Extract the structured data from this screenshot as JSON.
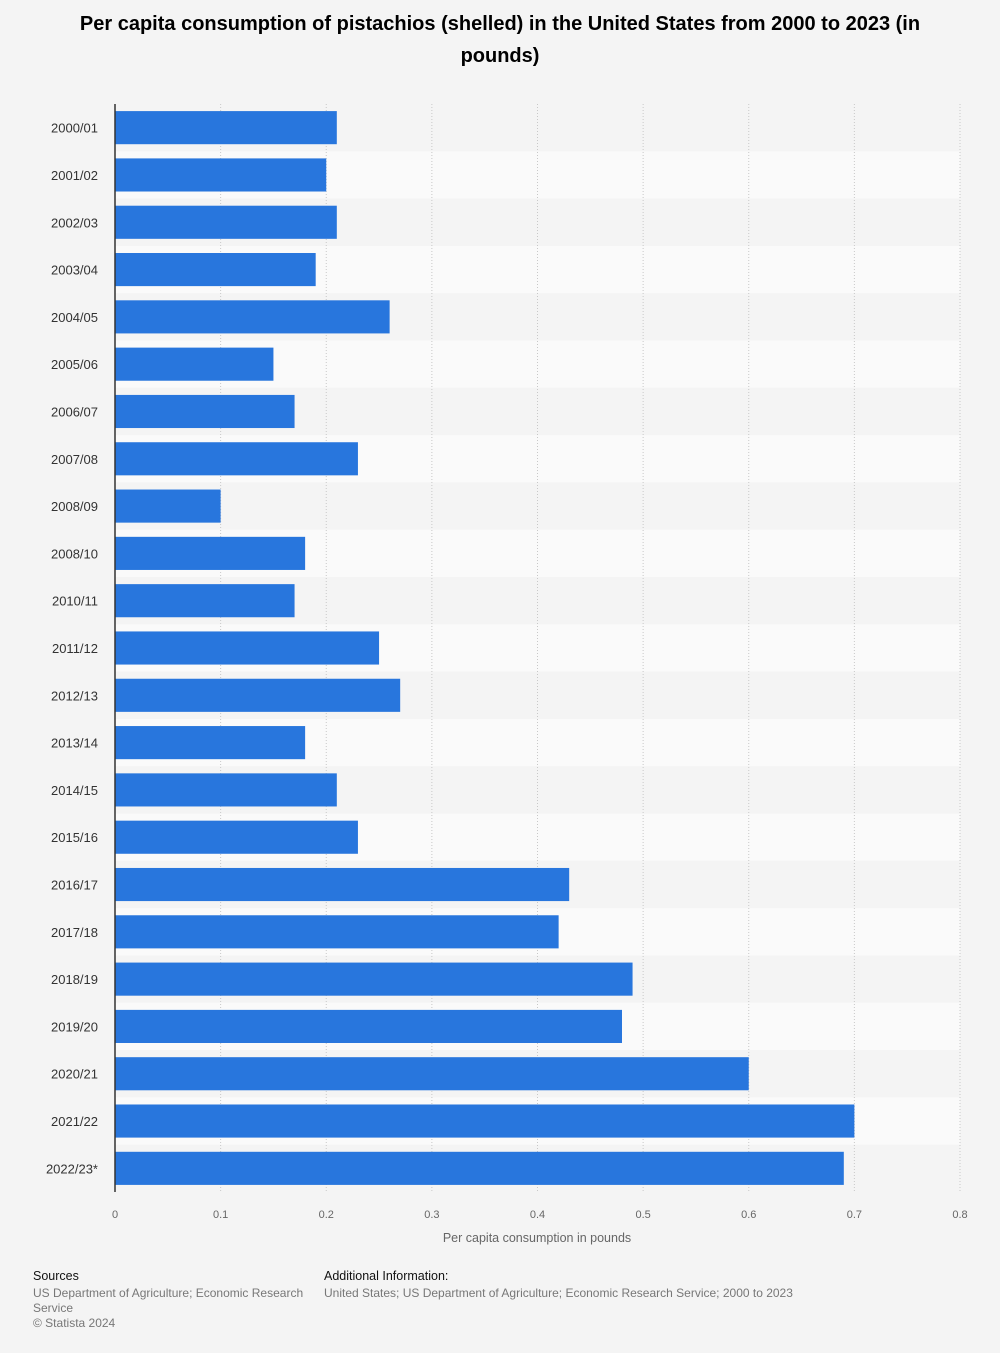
{
  "chart_data": {
    "type": "bar",
    "orientation": "horizontal",
    "title": "Per capita consumption of pistachios (shelled) in the United States from 2000 to 2023 (in pounds)",
    "xlabel": "Per capita consumption in pounds",
    "ylabel": "",
    "xlim": [
      0,
      0.8
    ],
    "grid": true,
    "xticks": [
      "0",
      "0.1",
      "0.2",
      "0.3",
      "0.4",
      "0.5",
      "0.6",
      "0.7",
      "0.8"
    ],
    "categories": [
      "2000/01",
      "2001/02",
      "2002/03",
      "2003/04",
      "2004/05",
      "2005/06",
      "2006/07",
      "2007/08",
      "2008/09",
      "2008/10",
      "2010/11",
      "2011/12",
      "2012/13",
      "2013/14",
      "2014/15",
      "2015/16",
      "2016/17",
      "2017/18",
      "2018/19",
      "2019/20",
      "2020/21",
      "2021/22",
      "2022/23*"
    ],
    "values": [
      0.21,
      0.2,
      0.21,
      0.19,
      0.26,
      0.15,
      0.17,
      0.23,
      0.1,
      0.18,
      0.17,
      0.25,
      0.27,
      0.18,
      0.21,
      0.23,
      0.43,
      0.42,
      0.49,
      0.48,
      0.6,
      0.7,
      0.69
    ],
    "bar_color": "#2876dd"
  },
  "footer": {
    "sources_heading": "Sources",
    "sources_line1": "US Department of Agriculture; Economic Research",
    "sources_line2": "Service",
    "copyright": "© Statista 2024",
    "additional_heading": "Additional Information:",
    "additional_text": "United States; US Department of Agriculture; Economic Research Service; 2000 to 2023"
  }
}
